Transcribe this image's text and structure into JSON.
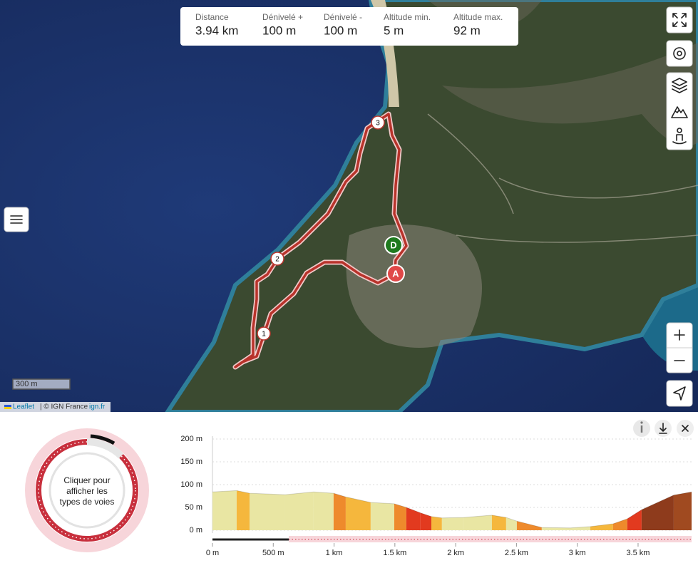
{
  "stats": [
    {
      "label": "Distance",
      "value": "3.94 km"
    },
    {
      "label": "Dénivelé +",
      "value": "100 m"
    },
    {
      "label": "Dénivelé -",
      "value": "100 m"
    },
    {
      "label": "Altitude min.",
      "value": "5 m"
    },
    {
      "label": "Altitude max.",
      "value": "92 m"
    }
  ],
  "map": {
    "waypoints": [
      "1",
      "2",
      "3"
    ],
    "start": "D",
    "end": "A",
    "scale": "300 m",
    "attribution": {
      "leaflet": "Leaflet",
      "provider": "| © IGN France",
      "link": "ign.fr"
    }
  },
  "panel": {
    "hint": [
      "Cliquer pour",
      "afficher les",
      "types de voies"
    ]
  },
  "chart_data": {
    "type": "area",
    "x": [
      0,
      199,
      305,
      598,
      832,
      996,
      1096,
      1301,
      1495,
      1594,
      1711,
      1800,
      1887,
      2063,
      2298,
      2415,
      2503,
      2708,
      2943,
      3107,
      3294,
      3411,
      3529,
      3793,
      3940
    ],
    "series": [
      {
        "values": [
          84,
          87,
          81,
          78,
          84,
          81,
          73,
          61,
          58,
          50,
          38,
          30,
          27,
          28,
          33,
          28,
          20,
          6,
          5,
          8,
          14,
          25,
          45,
          77,
          84
        ],
        "segment_colors": [
          "#e9e6a3",
          "#f5b73d",
          "#e9e6a3",
          "#e9e6a3",
          "#e9e6a3",
          "#ee8a2c",
          "#f5b73d",
          "#e9e6a3",
          "#ee8a2c",
          "#e23a1f",
          "#e23a1f",
          "#f5b73d",
          "#e9e6a3",
          "#e9e6a3",
          "#f5b73d",
          "#e9e6a3",
          "#ee8a2c",
          "#e9e6a3",
          "#e9e6a3",
          "#f5b73d",
          "#ee8a2c",
          "#e23a1f",
          "#8e3b1c",
          "#a04a20"
        ]
      }
    ],
    "xlim": [
      0,
      3940
    ],
    "ylim": [
      0,
      200
    ],
    "xticks": [
      {
        "value": 0,
        "label": "0 m"
      },
      {
        "value": 500,
        "label": "500 m"
      },
      {
        "value": 1000,
        "label": "1 km"
      },
      {
        "value": 1500,
        "label": "1.5 km"
      },
      {
        "value": 2000,
        "label": "2 km"
      },
      {
        "value": 2500,
        "label": "2.5 km"
      },
      {
        "value": 3000,
        "label": "3 km"
      },
      {
        "value": 3500,
        "label": "3.5 km"
      }
    ],
    "yticks": [
      {
        "value": 0,
        "label": "0 m"
      },
      {
        "value": 50,
        "label": "50 m"
      },
      {
        "value": 100,
        "label": "100 m"
      },
      {
        "value": 150,
        "label": "150 m"
      },
      {
        "value": 200,
        "label": "200 m"
      }
    ],
    "grid": true
  }
}
